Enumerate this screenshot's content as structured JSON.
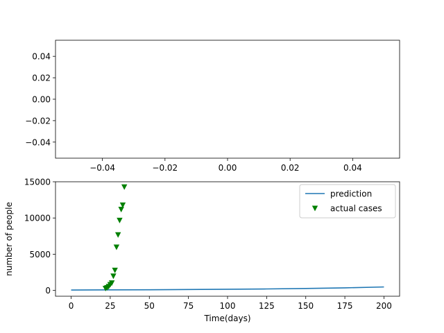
{
  "chart_data": [
    {
      "type": "line",
      "title": "",
      "xlabel": "",
      "ylabel": "",
      "xlim": [
        -0.055,
        0.055
      ],
      "ylim": [
        -0.055,
        0.055
      ],
      "xticks": [
        -0.04,
        -0.02,
        0.0,
        0.02,
        0.04
      ],
      "xtick_labels": [
        "−0.04",
        "−0.02",
        "0.00",
        "0.02",
        "0.04"
      ],
      "yticks": [
        -0.04,
        -0.02,
        0.0,
        0.02,
        0.04
      ],
      "ytick_labels": [
        "−0.04",
        "−0.02",
        "0.00",
        "0.02",
        "0.04"
      ],
      "series": []
    },
    {
      "type": "line",
      "title": "",
      "xlabel": "Time(days)",
      "ylabel": "number of people",
      "xlim": [
        -10,
        210
      ],
      "ylim": [
        -800,
        15000
      ],
      "xticks": [
        0,
        25,
        50,
        75,
        100,
        125,
        150,
        175,
        200
      ],
      "xtick_labels": [
        "0",
        "25",
        "50",
        "75",
        "100",
        "125",
        "150",
        "175",
        "200"
      ],
      "yticks": [
        0,
        5000,
        10000,
        15000
      ],
      "ytick_labels": [
        "0",
        "5000",
        "10000",
        "15000"
      ],
      "legend": "top-right",
      "series": [
        {
          "name": "prediction",
          "kind": "line",
          "color": "#1f77b4",
          "x": [
            0,
            25,
            50,
            75,
            100,
            125,
            150,
            175,
            200
          ],
          "y": [
            60,
            75,
            95,
            125,
            160,
            205,
            270,
            360,
            480
          ]
        },
        {
          "name": "actual cases",
          "kind": "scatter",
          "marker": "triangle-down",
          "color": "#008000",
          "x": [
            22,
            23,
            24,
            25,
            26,
            27,
            28,
            29,
            30,
            31,
            32,
            33,
            34
          ],
          "y": [
            300,
            400,
            560,
            830,
            1050,
            2000,
            2800,
            6000,
            7700,
            9700,
            11200,
            11800,
            14300
          ]
        }
      ]
    }
  ]
}
